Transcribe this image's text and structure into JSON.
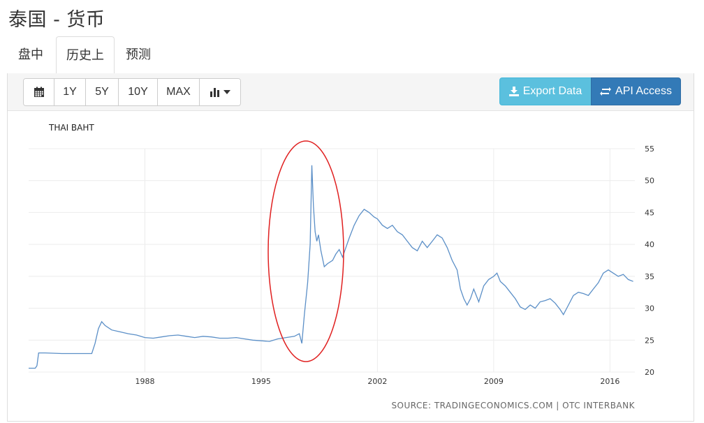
{
  "page": {
    "title": "泰国 - 货币"
  },
  "tabs": [
    {
      "label": "盘中",
      "active": false
    },
    {
      "label": "历史上",
      "active": true
    },
    {
      "label": "预测",
      "active": false
    }
  ],
  "toolbar": {
    "calendar_icon": "calendar-icon",
    "ranges": [
      "1Y",
      "5Y",
      "10Y",
      "MAX"
    ],
    "chart_type_icon": "bar-chart-icon",
    "export_label": "Export Data",
    "api_label": "API Access",
    "export_color": "#5bc0de",
    "api_color": "#337ab7"
  },
  "chart_data": {
    "type": "line",
    "title": "THAI BAHT",
    "source": "SOURCE: TRADINGECONOMICS.COM | OTC INTERBANK",
    "xlabel": "",
    "ylabel": "",
    "xlim": [
      1981.0,
      2017.5
    ],
    "ylim": [
      20,
      55
    ],
    "y_ticks": [
      20,
      25,
      30,
      35,
      40,
      45,
      50,
      55
    ],
    "x_ticks": [
      1988,
      1995,
      2002,
      2009,
      2016
    ],
    "grid": true,
    "line_color": "#5b8fc7",
    "annotation_color": "#e02020",
    "series": [
      {
        "points": [
          [
            1981.0,
            20.6
          ],
          [
            1981.4,
            20.6
          ],
          [
            1981.5,
            21.0
          ],
          [
            1981.6,
            23.0
          ],
          [
            1982.0,
            23.0
          ],
          [
            1983.0,
            22.9
          ],
          [
            1984.0,
            22.9
          ],
          [
            1984.8,
            22.9
          ],
          [
            1985.0,
            24.5
          ],
          [
            1985.2,
            26.8
          ],
          [
            1985.4,
            27.9
          ],
          [
            1985.6,
            27.3
          ],
          [
            1986.0,
            26.6
          ],
          [
            1986.5,
            26.3
          ],
          [
            1987.0,
            26.0
          ],
          [
            1987.5,
            25.8
          ],
          [
            1988.0,
            25.4
          ],
          [
            1988.5,
            25.3
          ],
          [
            1989.0,
            25.5
          ],
          [
            1989.5,
            25.7
          ],
          [
            1990.0,
            25.8
          ],
          [
            1990.5,
            25.6
          ],
          [
            1991.0,
            25.4
          ],
          [
            1991.5,
            25.6
          ],
          [
            1992.0,
            25.5
          ],
          [
            1992.5,
            25.3
          ],
          [
            1993.0,
            25.3
          ],
          [
            1993.5,
            25.4
          ],
          [
            1994.0,
            25.2
          ],
          [
            1994.5,
            25.0
          ],
          [
            1995.0,
            24.9
          ],
          [
            1995.5,
            24.8
          ],
          [
            1996.0,
            25.2
          ],
          [
            1996.5,
            25.4
          ],
          [
            1997.0,
            25.6
          ],
          [
            1997.3,
            26.0
          ],
          [
            1997.45,
            24.5
          ],
          [
            1997.6,
            29.0
          ],
          [
            1997.8,
            34.0
          ],
          [
            1997.95,
            40.0
          ],
          [
            1998.05,
            52.4
          ],
          [
            1998.15,
            46.0
          ],
          [
            1998.25,
            42.0
          ],
          [
            1998.35,
            40.5
          ],
          [
            1998.45,
            41.5
          ],
          [
            1998.6,
            39.0
          ],
          [
            1998.8,
            36.5
          ],
          [
            1999.0,
            37.0
          ],
          [
            1999.3,
            37.5
          ],
          [
            1999.5,
            38.5
          ],
          [
            1999.7,
            39.2
          ],
          [
            1999.9,
            38.0
          ],
          [
            2000.1,
            39.5
          ],
          [
            2000.3,
            41.0
          ],
          [
            2000.6,
            43.0
          ],
          [
            2000.9,
            44.5
          ],
          [
            2001.2,
            45.5
          ],
          [
            2001.5,
            45.0
          ],
          [
            2001.8,
            44.3
          ],
          [
            2002.0,
            44.0
          ],
          [
            2002.3,
            43.0
          ],
          [
            2002.6,
            42.5
          ],
          [
            2002.9,
            43.0
          ],
          [
            2003.2,
            42.0
          ],
          [
            2003.5,
            41.5
          ],
          [
            2003.8,
            40.5
          ],
          [
            2004.1,
            39.5
          ],
          [
            2004.4,
            39.0
          ],
          [
            2004.7,
            40.5
          ],
          [
            2005.0,
            39.5
          ],
          [
            2005.3,
            40.5
          ],
          [
            2005.6,
            41.5
          ],
          [
            2005.9,
            41.0
          ],
          [
            2006.2,
            39.5
          ],
          [
            2006.5,
            37.5
          ],
          [
            2006.8,
            36.0
          ],
          [
            2007.0,
            33.0
          ],
          [
            2007.2,
            31.5
          ],
          [
            2007.4,
            30.5
          ],
          [
            2007.6,
            31.5
          ],
          [
            2007.8,
            33.0
          ],
          [
            2008.1,
            31.0
          ],
          [
            2008.4,
            33.5
          ],
          [
            2008.7,
            34.5
          ],
          [
            2009.0,
            35.0
          ],
          [
            2009.2,
            35.5
          ],
          [
            2009.4,
            34.2
          ],
          [
            2009.7,
            33.5
          ],
          [
            2010.0,
            32.5
          ],
          [
            2010.3,
            31.5
          ],
          [
            2010.6,
            30.2
          ],
          [
            2010.9,
            29.8
          ],
          [
            2011.2,
            30.5
          ],
          [
            2011.5,
            30.0
          ],
          [
            2011.8,
            31.0
          ],
          [
            2012.1,
            31.2
          ],
          [
            2012.4,
            31.5
          ],
          [
            2012.7,
            30.8
          ],
          [
            2013.0,
            29.8
          ],
          [
            2013.2,
            29.0
          ],
          [
            2013.5,
            30.5
          ],
          [
            2013.8,
            32.0
          ],
          [
            2014.1,
            32.5
          ],
          [
            2014.4,
            32.3
          ],
          [
            2014.7,
            32.0
          ],
          [
            2015.0,
            33.0
          ],
          [
            2015.3,
            34.0
          ],
          [
            2015.6,
            35.5
          ],
          [
            2015.9,
            36.0
          ],
          [
            2016.2,
            35.5
          ],
          [
            2016.5,
            35.0
          ],
          [
            2016.8,
            35.3
          ],
          [
            2017.1,
            34.5
          ],
          [
            2017.4,
            34.2
          ]
        ]
      }
    ]
  }
}
